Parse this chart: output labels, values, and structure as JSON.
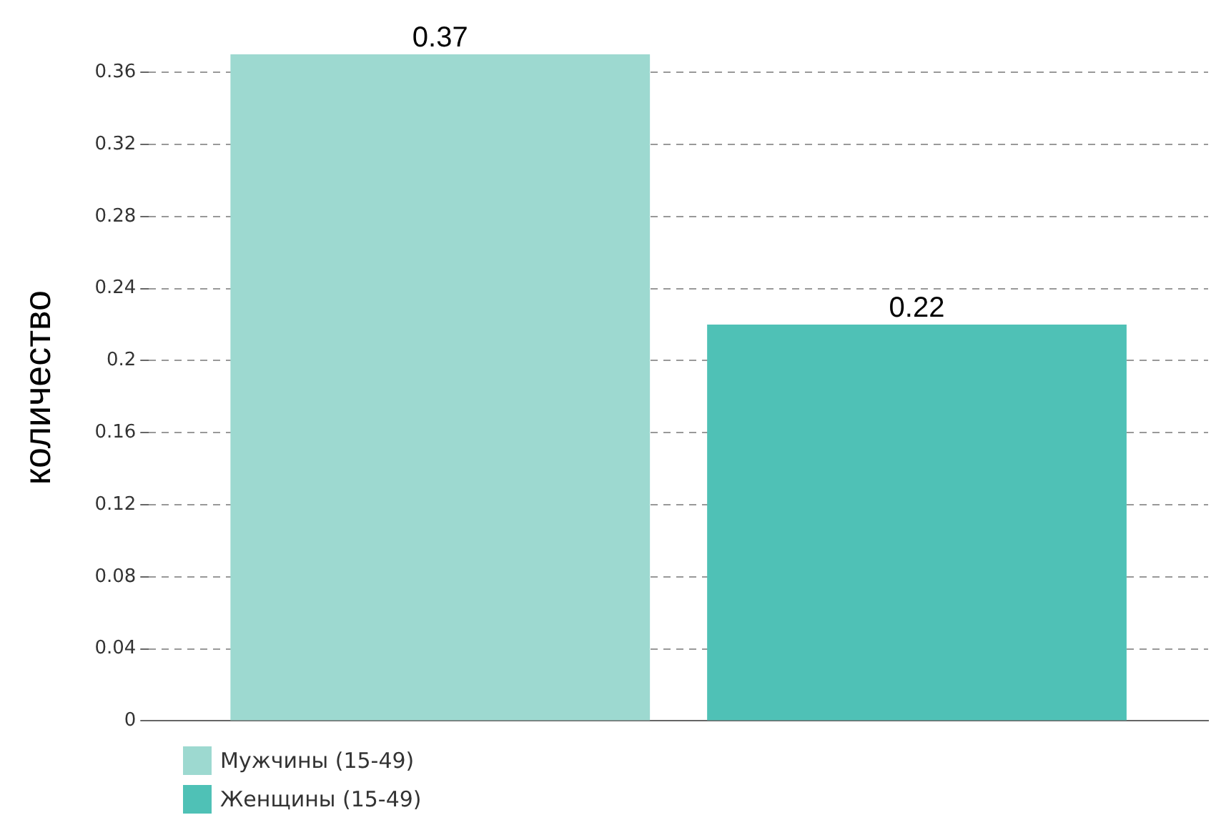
{
  "chart_data": {
    "type": "bar",
    "ylabel": "количество",
    "categories": [
      null
    ],
    "series": [
      {
        "name": "Мужчины (15-49)",
        "color": "#9dd9d0",
        "values": [
          0.37
        ]
      },
      {
        "name": "Женщины (15-49)",
        "color": "#4fc1b6",
        "values": [
          0.22
        ]
      }
    ],
    "ylim": [
      0,
      0.37
    ],
    "yticks": [
      0,
      0.04,
      0.08,
      0.12,
      0.16,
      0.2,
      0.24,
      0.28,
      0.32,
      0.36
    ],
    "grid": "y",
    "legend": "bottom left",
    "data_labels": true
  }
}
